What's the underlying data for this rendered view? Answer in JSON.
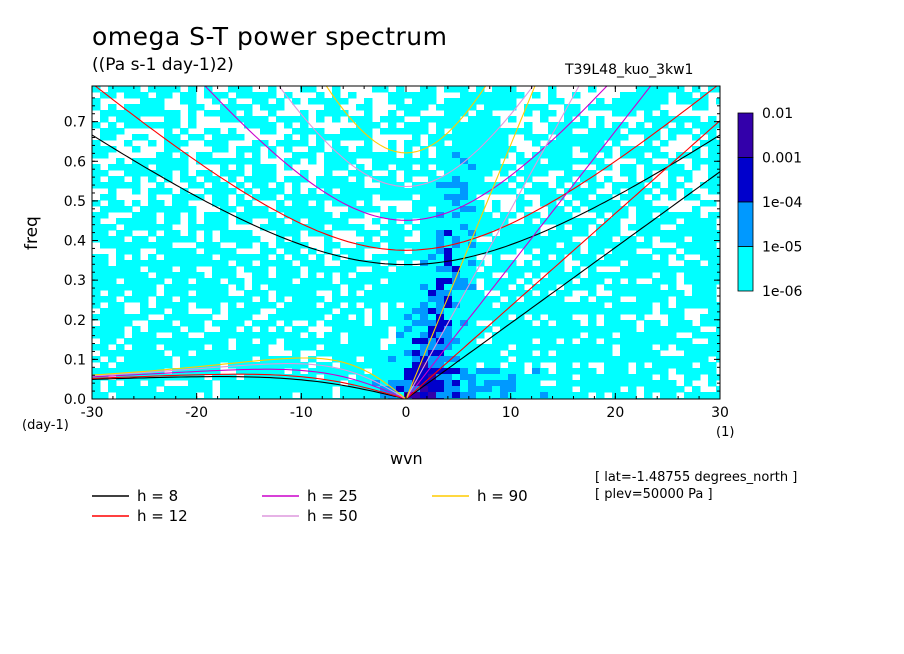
{
  "title": "omega S-T power spectrum",
  "units": "((Pa s-1 day-1)2)",
  "run_name": "T39L48_kuo_3kw1",
  "info": [
    "[ lat=-1.48755 degrees_north ]",
    "[ plev=50000 Pa ]"
  ],
  "colors": {
    "level1": "#00ffff",
    "level2": "#0099ff",
    "level3": "#0000cc",
    "level4": "#3300aa",
    "h8": "#000000",
    "h12": "#ff0000",
    "h25": "#cc00cc",
    "h50": "#dd99dd",
    "h90": "#ffcc00"
  },
  "chart_data": {
    "type": "heatmap",
    "title": "omega S-T power spectrum",
    "xlabel": "wvn",
    "ylabel": "freq",
    "x_unit": "(1)",
    "y_unit": "(day-1)",
    "xlim": [
      -30,
      30
    ],
    "ylim": [
      0,
      0.79
    ],
    "x_ticks": [
      "-30",
      "-20",
      "-10",
      "0",
      "10",
      "20",
      "30"
    ],
    "y_ticks": [
      "0.0",
      "0.1",
      "0.2",
      "0.3",
      "0.4",
      "0.5",
      "0.6",
      "0.7"
    ],
    "colorbar": {
      "labels": [
        "0.01",
        "0.001",
        "1e-04",
        "1e-05",
        "1e-06"
      ],
      "levels": [
        1e-06,
        1e-05,
        0.0001,
        0.001,
        0.01
      ]
    },
    "dispersion_curves": [
      {
        "name": "h =  8",
        "h": 8
      },
      {
        "name": "h = 12",
        "h": 12
      },
      {
        "name": "h = 25",
        "h": 25
      },
      {
        "name": "h = 50",
        "h": 50
      },
      {
        "name": "h = 90",
        "h": 90
      }
    ]
  }
}
